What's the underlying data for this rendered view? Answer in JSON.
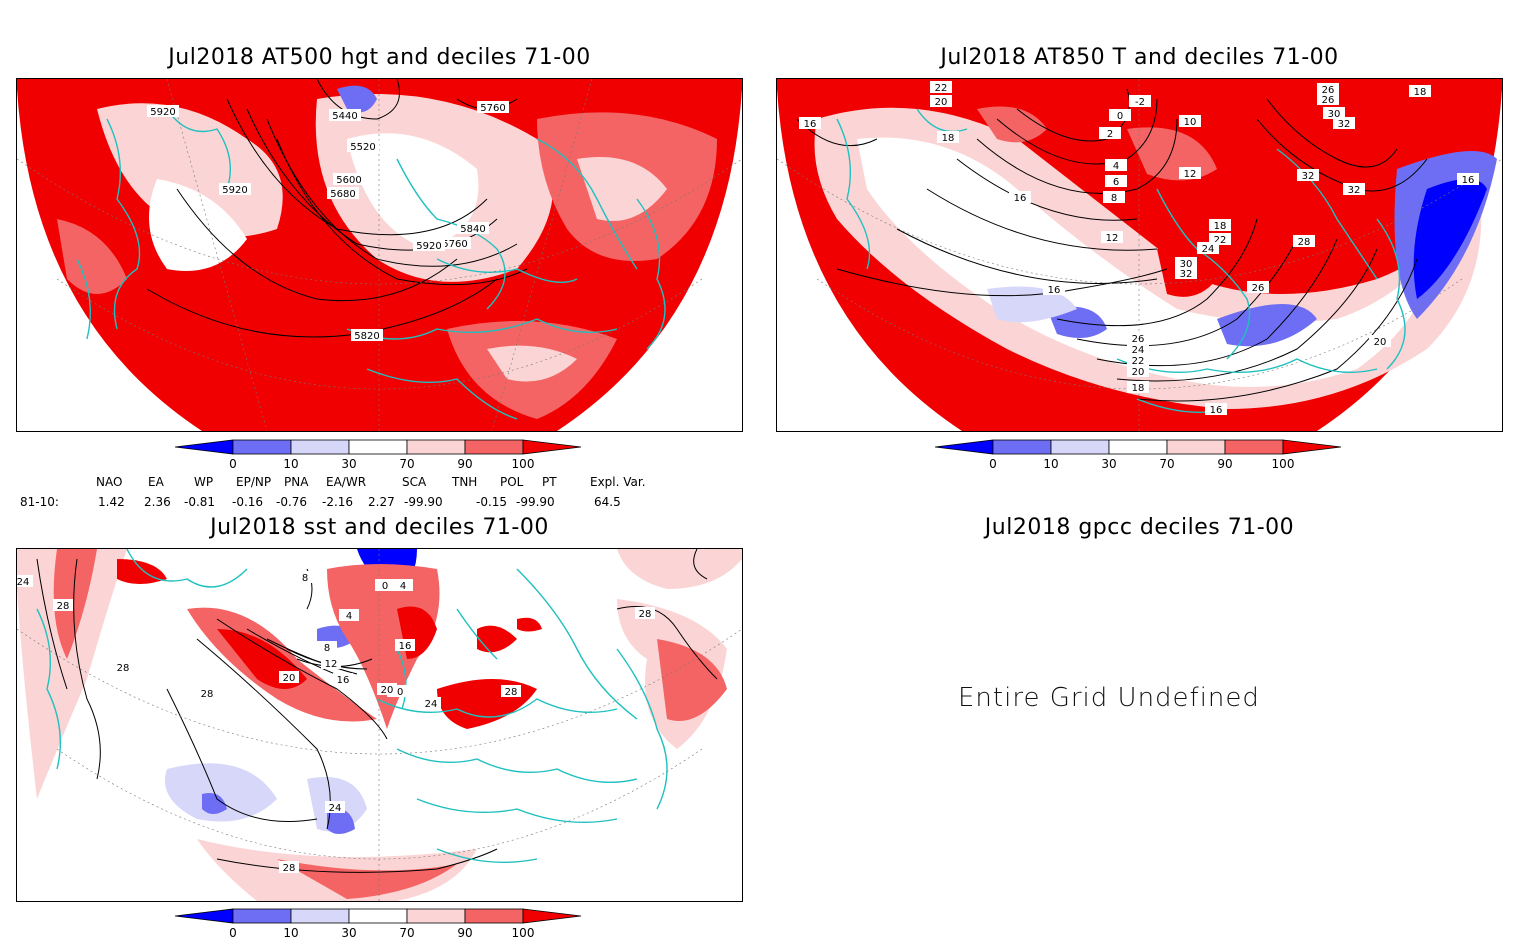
{
  "panels": {
    "hgt500": {
      "title": "Jul2018 AT500 hgt and deciles 71-00",
      "contour_labels": [
        "5920",
        "5440",
        "5520",
        "5600",
        "5680",
        "5760",
        "5840",
        "5760",
        "5920",
        "5920",
        "5840",
        "5820"
      ]
    },
    "t850": {
      "title": "Jul2018 AT850 T and deciles 71-00",
      "contour_labels": [
        "22",
        "20",
        "16",
        "18",
        "-2",
        "0",
        "2",
        "4",
        "6",
        "8",
        "10",
        "12",
        "16",
        "12",
        "16",
        "18",
        "22",
        "24",
        "26",
        "28",
        "30",
        "32",
        "26",
        "24",
        "22",
        "20",
        "18",
        "16",
        "26",
        "26",
        "30",
        "32",
        "32",
        "32",
        "16",
        "18",
        "20"
      ]
    },
    "sst": {
      "title": "Jul2018 sst and deciles 71-00",
      "contour_labels": [
        "24",
        "28",
        "28",
        "28",
        "20",
        "4",
        "8",
        "12",
        "16",
        "20",
        "24",
        "28",
        "24",
        "28",
        "28",
        "0",
        "4",
        "8",
        "20",
        "16"
      ]
    },
    "gpcc": {
      "title": "Jul2018 gpcc deciles 71-00",
      "message": "Entire Grid Undefined"
    }
  },
  "colorbar": {
    "ticks": [
      "0",
      "10",
      "30",
      "70",
      "90",
      "100"
    ],
    "colors": [
      "#0000ff",
      "#6e6ef5",
      "#d7d7fa",
      "#ffffff",
      "#fbd5d5",
      "#f46464",
      "#f00000"
    ]
  },
  "indices": {
    "headers": [
      "NAO",
      "EA",
      "WP",
      "EP/NP",
      "PNA",
      "EA/WR",
      "SCA",
      "TNH",
      "POL",
      "PT",
      "Expl. Var."
    ],
    "row_label": "81-10:",
    "values": [
      "1.42",
      "2.36",
      "-0.81",
      "-0.16",
      "-0.76",
      "-2.16",
      "2.27",
      "-99.90",
      "-0.15",
      "-99.90",
      "64.5"
    ]
  }
}
